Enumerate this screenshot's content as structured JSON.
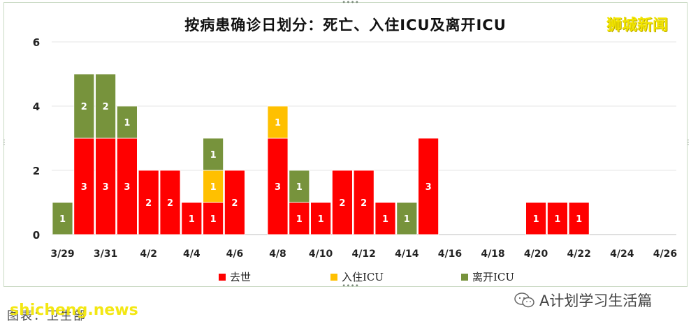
{
  "header": {
    "title": "按病患确诊日划分：死亡、入住ICU及离开ICU",
    "brand": "狮城新闻"
  },
  "footer": {
    "wechat_account": "A计划学习生活篇",
    "watermark": "shicheng.news",
    "caption": "图表：卫生部"
  },
  "colors": {
    "deaths": "#ff0000",
    "icu_in": "#ffc000",
    "icu_out": "#77933c",
    "bar_label": "#ffffff"
  },
  "chart_data": {
    "type": "bar",
    "stacked": true,
    "title": "按病患确诊日划分：死亡、入住ICU及离开ICU",
    "categories": [
      "3/29",
      "3/30",
      "3/31",
      "4/1",
      "4/2",
      "4/3",
      "4/4",
      "4/5",
      "4/6",
      "4/7",
      "4/8",
      "4/9",
      "4/10",
      "4/11",
      "4/12",
      "4/13",
      "4/14",
      "4/15",
      "4/16",
      "4/17",
      "4/18",
      "4/19",
      "4/20",
      "4/21",
      "4/22",
      "4/23",
      "4/24",
      "4/25",
      "4/26"
    ],
    "tick_labels": [
      "3/29",
      "3/31",
      "4/2",
      "4/4",
      "4/6",
      "4/8",
      "4/10",
      "4/12",
      "4/14",
      "4/16",
      "4/18",
      "4/20",
      "4/22",
      "4/24",
      "4/26"
    ],
    "series": [
      {
        "name": "去世",
        "color": "#ff0000",
        "values": [
          0,
          3,
          3,
          3,
          2,
          2,
          1,
          1,
          2,
          0,
          3,
          1,
          1,
          2,
          2,
          1,
          0,
          3,
          0,
          0,
          0,
          0,
          1,
          1,
          1,
          0,
          0,
          0,
          0
        ]
      },
      {
        "name": "入住ICU",
        "color": "#ffc000",
        "values": [
          0,
          0,
          0,
          0,
          0,
          0,
          0,
          1,
          0,
          0,
          1,
          0,
          0,
          0,
          0,
          0,
          0,
          0,
          0,
          0,
          0,
          0,
          0,
          0,
          0,
          0,
          0,
          0,
          0
        ]
      },
      {
        "name": "离开ICU",
        "color": "#77933c",
        "values": [
          1,
          2,
          2,
          1,
          0,
          0,
          0,
          1,
          0,
          0,
          0,
          1,
          0,
          0,
          0,
          0,
          1,
          0,
          0,
          0,
          0,
          0,
          0,
          0,
          0,
          0,
          0,
          0,
          0
        ]
      }
    ],
    "ylim": [
      0,
      6
    ],
    "yticks": [
      0,
      2,
      4,
      6
    ],
    "grid": true,
    "legend_position": "bottom"
  }
}
